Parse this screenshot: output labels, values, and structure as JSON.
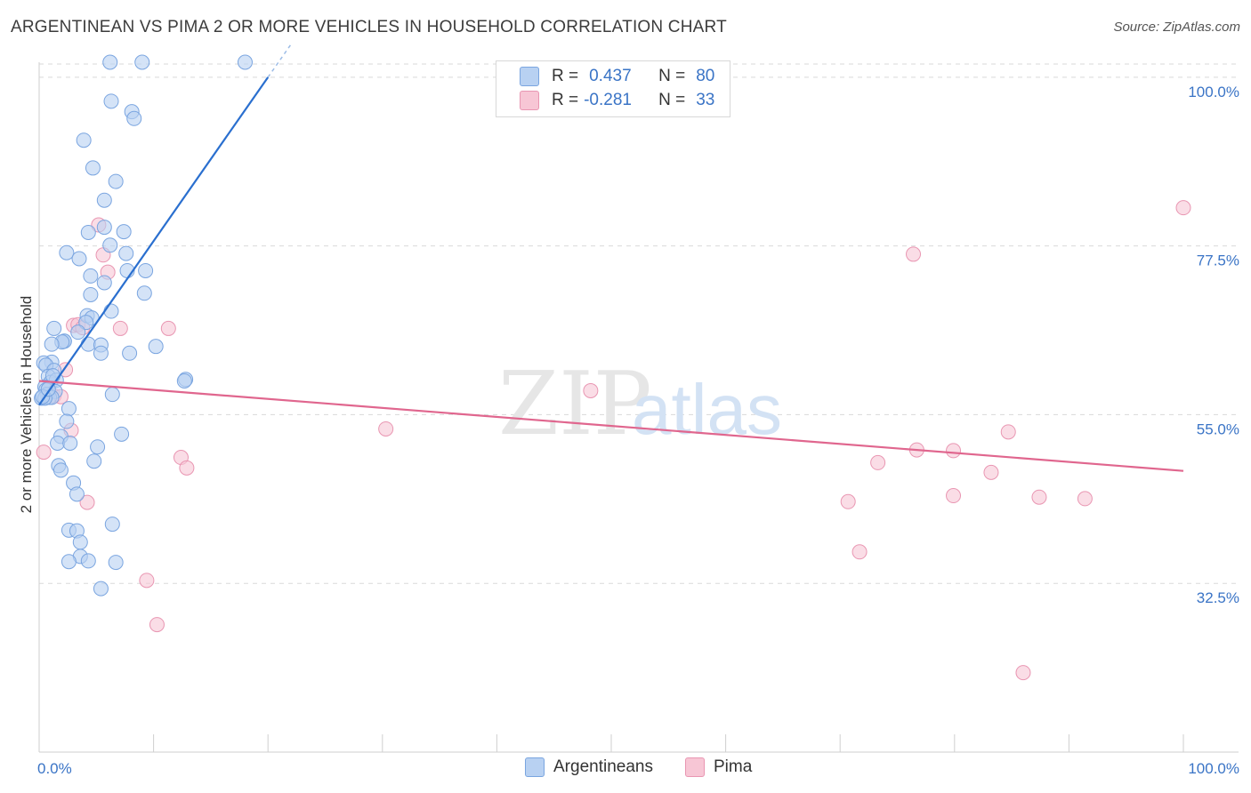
{
  "title": "ARGENTINEAN VS PIMA 2 OR MORE VEHICLES IN HOUSEHOLD CORRELATION CHART",
  "source": "Source: ZipAtlas.com",
  "watermark": {
    "zip": "ZIP",
    "atlas": "atlas"
  },
  "legend": {
    "argentineans": {
      "r_label": "R =",
      "r_value": "0.437",
      "n_label": "N =",
      "n_value": "80"
    },
    "pima": {
      "r_label": "R =",
      "r_value": "-0.281",
      "n_label": "N =",
      "n_value": "33"
    }
  },
  "bottom_legend": {
    "argentineans": "Argentineans",
    "pima": "Pima"
  },
  "colors": {
    "argentineans_fill": "#b8d1f2",
    "argentineans_stroke": "#7aa5e0",
    "argentineans_line": "#2a6fcf",
    "pima_fill": "#f7c6d5",
    "pima_stroke": "#e996b2",
    "pima_line": "#e0668e",
    "tick_text": "#3a74c6",
    "grid": "#d9d9d9"
  },
  "chart_data": {
    "type": "scatter",
    "title": "ARGENTINEAN VS PIMA 2 OR MORE VEHICLES IN HOUSEHOLD CORRELATION CHART",
    "xlabel": "",
    "ylabel": "2 or more Vehicles in Household",
    "xlim": [
      0,
      100
    ],
    "ylim": [
      10,
      102
    ],
    "x_tick_labels": [
      "0.0%",
      "100.0%"
    ],
    "y_ticks": [
      32.5,
      55.0,
      77.5,
      100.0
    ],
    "y_tick_labels": [
      "32.5%",
      "55.0%",
      "77.5%",
      "100.0%"
    ],
    "series": [
      {
        "name": "Argentineans",
        "points": [
          [
            6.2,
            102
          ],
          [
            9.0,
            102
          ],
          [
            18.0,
            102
          ],
          [
            6.3,
            96.8
          ],
          [
            8.1,
            95.4
          ],
          [
            8.3,
            94.5
          ],
          [
            3.9,
            91.6
          ],
          [
            4.7,
            87.9
          ],
          [
            6.7,
            86.1
          ],
          [
            5.7,
            83.6
          ],
          [
            4.3,
            79.3
          ],
          [
            5.7,
            80.0
          ],
          [
            7.4,
            79.4
          ],
          [
            6.2,
            77.6
          ],
          [
            2.4,
            76.6
          ],
          [
            3.5,
            75.8
          ],
          [
            7.6,
            76.5
          ],
          [
            7.7,
            74.2
          ],
          [
            9.3,
            74.2
          ],
          [
            4.5,
            73.5
          ],
          [
            5.7,
            72.6
          ],
          [
            4.5,
            71.0
          ],
          [
            9.2,
            71.2
          ],
          [
            6.3,
            68.8
          ],
          [
            4.2,
            68.2
          ],
          [
            4.6,
            67.9
          ],
          [
            4.1,
            67.3
          ],
          [
            1.3,
            66.5
          ],
          [
            3.4,
            66.0
          ],
          [
            2.2,
            64.8
          ],
          [
            2.2,
            64.8
          ],
          [
            2.0,
            64.7
          ],
          [
            1.1,
            64.4
          ],
          [
            4.3,
            64.4
          ],
          [
            5.4,
            64.3
          ],
          [
            10.2,
            64.1
          ],
          [
            5.4,
            63.2
          ],
          [
            7.9,
            63.2
          ],
          [
            1.1,
            62.0
          ],
          [
            0.4,
            61.9
          ],
          [
            0.6,
            61.6
          ],
          [
            1.3,
            60.9
          ],
          [
            0.8,
            60.1
          ],
          [
            12.8,
            59.7
          ],
          [
            12.7,
            59.5
          ],
          [
            1.0,
            59.3
          ],
          [
            1.5,
            59.6
          ],
          [
            0.5,
            58.7
          ],
          [
            0.6,
            58.3
          ],
          [
            1.4,
            58.1
          ],
          [
            0.7,
            57.7
          ],
          [
            6.4,
            57.7
          ],
          [
            0.2,
            57.2
          ],
          [
            0.9,
            57.3
          ],
          [
            1.1,
            57.3
          ],
          [
            0.5,
            57.2
          ],
          [
            2.6,
            55.8
          ],
          [
            2.4,
            54.1
          ],
          [
            7.2,
            52.4
          ],
          [
            1.9,
            52.1
          ],
          [
            1.6,
            51.2
          ],
          [
            2.7,
            51.2
          ],
          [
            5.1,
            50.7
          ],
          [
            4.8,
            48.8
          ],
          [
            1.7,
            48.2
          ],
          [
            1.9,
            47.6
          ],
          [
            3.0,
            45.9
          ],
          [
            3.3,
            44.4
          ],
          [
            6.4,
            40.4
          ],
          [
            2.6,
            39.6
          ],
          [
            3.3,
            39.5
          ],
          [
            3.6,
            38.0
          ],
          [
            3.6,
            36.1
          ],
          [
            2.6,
            35.4
          ],
          [
            4.3,
            35.5
          ],
          [
            6.7,
            35.3
          ],
          [
            5.4,
            31.8
          ],
          [
            0.3,
            57.4
          ],
          [
            0.8,
            58.4
          ],
          [
            1.2,
            60.2
          ]
        ]
      },
      {
        "name": "Pima",
        "points": [
          [
            0.4,
            50.0
          ],
          [
            1.3,
            57.5
          ],
          [
            1.9,
            57.4
          ],
          [
            2.3,
            61.0
          ],
          [
            3.0,
            66.9
          ],
          [
            3.4,
            67.0
          ],
          [
            3.8,
            66.6
          ],
          [
            2.8,
            52.9
          ],
          [
            4.2,
            43.3
          ],
          [
            5.2,
            80.3
          ],
          [
            5.6,
            76.3
          ],
          [
            6.0,
            74.0
          ],
          [
            7.1,
            66.5
          ],
          [
            9.4,
            32.9
          ],
          [
            10.3,
            27.0
          ],
          [
            11.3,
            66.5
          ],
          [
            12.4,
            49.3
          ],
          [
            12.9,
            47.9
          ],
          [
            30.3,
            53.1
          ],
          [
            48.2,
            58.2
          ],
          [
            70.7,
            43.4
          ],
          [
            71.7,
            36.7
          ],
          [
            73.3,
            48.6
          ],
          [
            76.7,
            50.3
          ],
          [
            76.4,
            76.4
          ],
          [
            79.9,
            50.2
          ],
          [
            79.9,
            44.2
          ],
          [
            83.2,
            47.3
          ],
          [
            84.7,
            52.7
          ],
          [
            86.0,
            20.6
          ],
          [
            87.4,
            44.0
          ],
          [
            91.4,
            43.8
          ],
          [
            100.0,
            82.6
          ]
        ]
      }
    ],
    "trendlines": [
      {
        "series": "Argentineans",
        "x": [
          0,
          20
        ],
        "y": [
          56.3,
          100.0
        ],
        "dashed_extension_x": [
          20,
          22
        ],
        "style": "solid"
      },
      {
        "series": "Pima",
        "x": [
          0,
          100
        ],
        "y": [
          59.5,
          47.5
        ],
        "style": "solid"
      }
    ]
  }
}
